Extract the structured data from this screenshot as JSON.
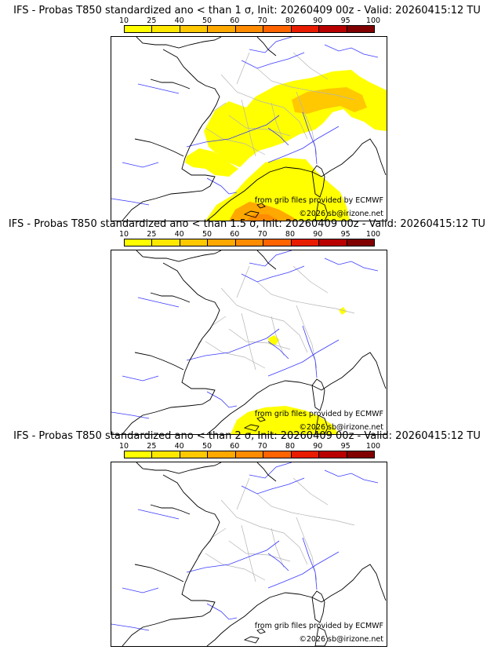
{
  "colorbar": {
    "ticks": [
      "10",
      "25",
      "40",
      "50",
      "60",
      "70",
      "80",
      "90",
      "95",
      "100"
    ],
    "colors": [
      "#ffff00",
      "#ffe800",
      "#ffc800",
      "#ffa800",
      "#ff8c00",
      "#ff6400",
      "#e81c00",
      "#b80000",
      "#800000"
    ]
  },
  "credits": {
    "source": "from grib files provided by ECMWF",
    "copyright": "©2026 sb@irizone.net"
  },
  "panels": [
    {
      "title": "IFS - Probas T850  standardized ano < than 1 σ, Init: 20260409 00z - Valid: 20260415:12 TU"
    },
    {
      "title": "IFS - Probas T850  standardized ano < than 1.5 σ, Init: 20260409 00z - Valid: 20260415:12 TU"
    },
    {
      "title": "IFS - Probas T850  standardized ano < than 2 σ, Init: 20260409 00z - Valid: 20260415:12 TU"
    }
  ],
  "colors": {
    "coast": "#000000",
    "rivers": "#3a3aff",
    "borders": "#b4b4b4"
  }
}
